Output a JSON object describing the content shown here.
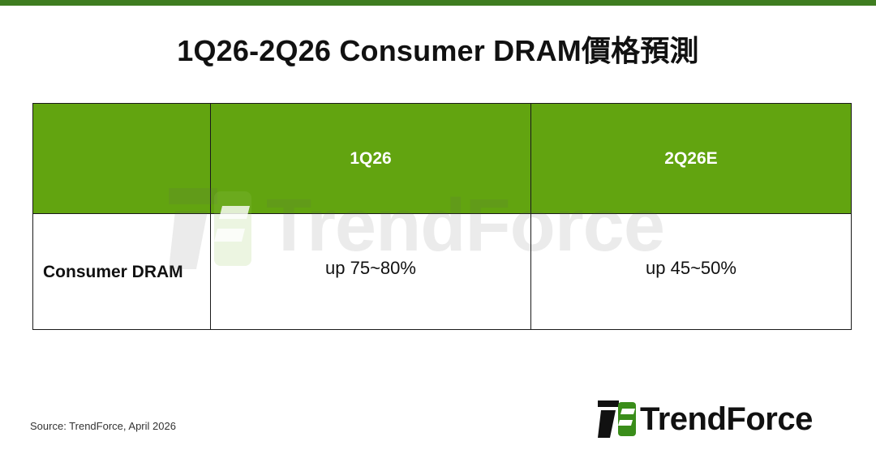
{
  "title": "1Q26-2Q26 Consumer DRAM價格預測",
  "table": {
    "corner_label": "",
    "columns": [
      "1Q26",
      "2Q26E"
    ],
    "rows": [
      {
        "label": "Consumer DRAM",
        "values": [
          "up 75~80%",
          "up 45~50%"
        ]
      }
    ]
  },
  "source": "Source: TrendForce, April 2026",
  "logo": {
    "text": "TrendForce",
    "icon": "trendforce-logo-icon"
  },
  "watermark": {
    "text": "TrendForce"
  },
  "colors": {
    "top_bar": "#3f7d20",
    "header_bg": "#62a410",
    "header_text": "#ffffff",
    "logo_accent": "#3a8d1a"
  }
}
